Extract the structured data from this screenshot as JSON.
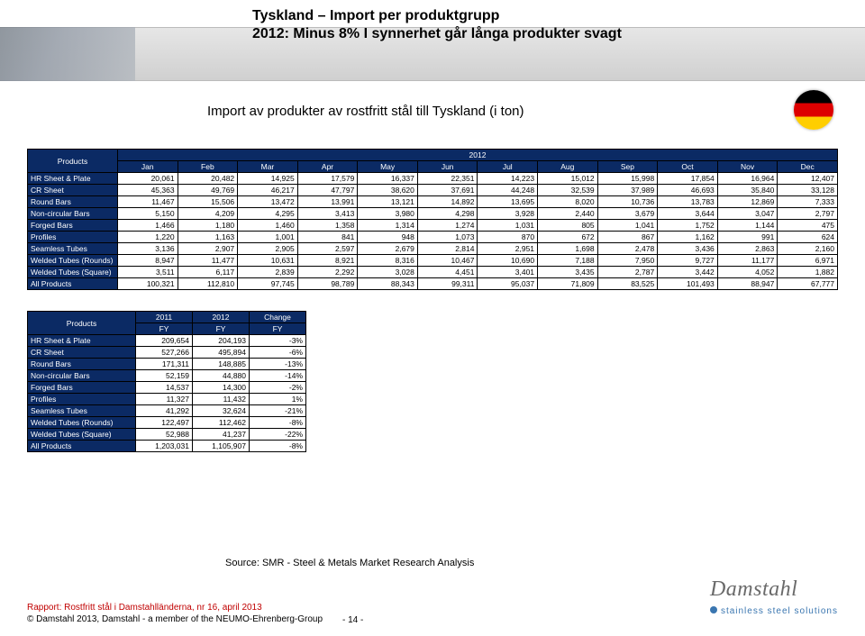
{
  "title_line1": "Tyskland – Import per produktgrupp",
  "title_line2": "2012: Minus 8% I synnerhet går långa produkter svagt",
  "subtitle": "Import av produkter av rostfritt stål till Tyskland (i ton)",
  "main_table": {
    "header_year": "2012",
    "row_header": "Products",
    "columns": [
      "Jan",
      "Feb",
      "Mar",
      "Apr",
      "May",
      "Jun",
      "Jul",
      "Aug",
      "Sep",
      "Oct",
      "Nov",
      "Dec"
    ],
    "rows": [
      {
        "label": "HR Sheet & Plate",
        "vals": [
          "20,061",
          "20,482",
          "14,925",
          "17,579",
          "16,337",
          "22,351",
          "14,223",
          "15,012",
          "15,998",
          "17,854",
          "16,964",
          "12,407"
        ]
      },
      {
        "label": "CR Sheet",
        "vals": [
          "45,363",
          "49,769",
          "46,217",
          "47,797",
          "38,620",
          "37,691",
          "44,248",
          "32,539",
          "37,989",
          "46,693",
          "35,840",
          "33,128"
        ]
      },
      {
        "label": "Round Bars",
        "vals": [
          "11,467",
          "15,506",
          "13,472",
          "13,991",
          "13,121",
          "14,892",
          "13,695",
          "8,020",
          "10,736",
          "13,783",
          "12,869",
          "7,333"
        ]
      },
      {
        "label": "Non-circular Bars",
        "vals": [
          "5,150",
          "4,209",
          "4,295",
          "3,413",
          "3,980",
          "4,298",
          "3,928",
          "2,440",
          "3,679",
          "3,644",
          "3,047",
          "2,797"
        ]
      },
      {
        "label": "Forged Bars",
        "vals": [
          "1,466",
          "1,180",
          "1,460",
          "1,358",
          "1,314",
          "1,274",
          "1,031",
          "805",
          "1,041",
          "1,752",
          "1,144",
          "475"
        ]
      },
      {
        "label": "Profiles",
        "vals": [
          "1,220",
          "1,163",
          "1,001",
          "841",
          "948",
          "1,073",
          "870",
          "672",
          "867",
          "1,162",
          "991",
          "624"
        ]
      },
      {
        "label": "Seamless Tubes",
        "vals": [
          "3,136",
          "2,907",
          "2,905",
          "2,597",
          "2,679",
          "2,814",
          "2,951",
          "1,698",
          "2,478",
          "3,436",
          "2,863",
          "2,160"
        ]
      },
      {
        "label": "Welded Tubes (Rounds)",
        "vals": [
          "8,947",
          "11,477",
          "10,631",
          "8,921",
          "8,316",
          "10,467",
          "10,690",
          "7,188",
          "7,950",
          "9,727",
          "11,177",
          "6,971"
        ]
      },
      {
        "label": "Welded Tubes (Square)",
        "vals": [
          "3,511",
          "6,117",
          "2,839",
          "2,292",
          "3,028",
          "4,451",
          "3,401",
          "3,435",
          "2,787",
          "3,442",
          "4,052",
          "1,882"
        ]
      },
      {
        "label": "All Products",
        "vals": [
          "100,321",
          "112,810",
          "97,745",
          "98,789",
          "88,343",
          "99,311",
          "95,037",
          "71,809",
          "83,525",
          "101,493",
          "88,947",
          "67,777"
        ]
      }
    ]
  },
  "summary_table": {
    "row_header": "Products",
    "columns_top": [
      "2011",
      "2012",
      "Change"
    ],
    "columns_bottom": [
      "FY",
      "FY",
      "FY"
    ],
    "rows": [
      {
        "label": "HR Sheet & Plate",
        "vals": [
          "209,654",
          "204,193",
          "-3%"
        ]
      },
      {
        "label": "CR Sheet",
        "vals": [
          "527,266",
          "495,894",
          "-6%"
        ]
      },
      {
        "label": "Round Bars",
        "vals": [
          "171,311",
          "148,885",
          "-13%"
        ]
      },
      {
        "label": "Non-circular Bars",
        "vals": [
          "52,159",
          "44,880",
          "-14%"
        ]
      },
      {
        "label": "Forged Bars",
        "vals": [
          "14,537",
          "14,300",
          "-2%"
        ]
      },
      {
        "label": "Profiles",
        "vals": [
          "11,327",
          "11,432",
          "1%"
        ]
      },
      {
        "label": "Seamless Tubes",
        "vals": [
          "41,292",
          "32,624",
          "-21%"
        ]
      },
      {
        "label": "Welded Tubes (Rounds)",
        "vals": [
          "122,497",
          "112,462",
          "-8%"
        ]
      },
      {
        "label": "Welded Tubes (Square)",
        "vals": [
          "52,988",
          "41,237",
          "-22%"
        ]
      },
      {
        "label": "All Products",
        "vals": [
          "1,203,031",
          "1,105,907",
          "-8%"
        ]
      }
    ]
  },
  "source": "Source: SMR - Steel & Metals Market Research Analysis",
  "footer_line1": "Rapport: Rostfritt stål i Damstahlländerna, nr 16, april 2013",
  "footer_line2": "© Damstahl 2013, Damstahl - a member of the NEUMO-Ehrenberg-Group",
  "page_number": "- 14 -",
  "logo_brand": "Damstahl",
  "logo_tag": "stainless steel solutions",
  "colors": {
    "header_bg": "#0b2a64",
    "header_fg": "#ffffff",
    "bar_bg": "#d8d8d8",
    "red": "#c00000",
    "logo_blue": "#3a76b0"
  }
}
